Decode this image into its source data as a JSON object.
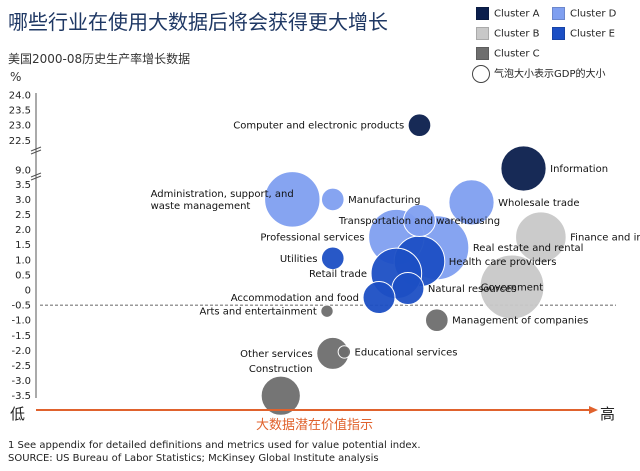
{
  "title": "哪些行业在使用大数据后将会获得更大增长",
  "subtitle": "美国2000-08历史生产率增长数据",
  "unit": "%",
  "legend": {
    "items": [
      {
        "label": "Cluster A",
        "color": "#0b1f4d"
      },
      {
        "label": "Cluster D",
        "color": "#7f9ff0"
      },
      {
        "label": "Cluster B",
        "color": "#c8c8c8"
      },
      {
        "label": "Cluster E",
        "color": "#1c4fc4"
      },
      {
        "label": "Cluster C",
        "color": "#6e6e6e"
      }
    ],
    "size_note": "气泡大小表示GDP的大小"
  },
  "x_axis": {
    "title": "大数据潜在价值指示",
    "low": "低",
    "high": "高"
  },
  "footnote": "1  See appendix for detailed definitions and metrics used for value potential index.",
  "source": "SOURCE:  US Bureau of Labor Statistics; McKinsey Global Institute analysis",
  "chart_data": {
    "type": "scatter",
    "title": "哪些行业在使用大数据后将会获得更大增长",
    "subtitle": "美国2000-08历史生产率增长数据",
    "ylabel": "%",
    "xlabel": "大数据潜在价值指示",
    "y_ticks_upper": [
      "24.0",
      "23.5",
      "23.0",
      "22.5"
    ],
    "y_ticks_middle": [
      "9.0",
      "3.5"
    ],
    "y_ticks_lower": [
      "3.0",
      "2.5",
      "2.0",
      "1.5",
      "1.0",
      "0.5",
      "0",
      "-0.5",
      "-1.0",
      "-1.5",
      "-2.0",
      "-2.5",
      "-3.0",
      "-3.5"
    ],
    "reference_line": -0.5,
    "points": [
      {
        "name": "Computer and electronic products",
        "x": 0.66,
        "y": 23.0,
        "cluster": "Cluster A",
        "size": 1,
        "label_side": "left"
      },
      {
        "name": "Information",
        "x": 0.84,
        "y": 9.6,
        "cluster": "Cluster A",
        "size": 4,
        "label_side": "right"
      },
      {
        "name": "Administration, support, and\nwaste management",
        "x": 0.44,
        "y": 3.0,
        "cluster": "Cluster D",
        "size": 6,
        "label_side": "left"
      },
      {
        "name": "Manufacturing",
        "x": 0.51,
        "y": 3.0,
        "cluster": "Cluster D",
        "size": 1,
        "label_side": "right"
      },
      {
        "name": "Wholesale trade",
        "x": 0.75,
        "y": 2.9,
        "cluster": "Cluster D",
        "size": 4,
        "label_side": "right"
      },
      {
        "name": "Transportation and warehousing",
        "x": 0.66,
        "y": 2.3,
        "cluster": "Cluster D",
        "size": 2,
        "label_side": "center"
      },
      {
        "name": "Finance and insurance",
        "x": 0.87,
        "y": 1.75,
        "cluster": "Cluster B",
        "size": 5,
        "label_side": "right"
      },
      {
        "name": "Professional services",
        "x": 0.62,
        "y": 1.75,
        "cluster": "Cluster D",
        "size": 6,
        "label_side": "left"
      },
      {
        "name": "Real estate and rental",
        "x": 0.69,
        "y": 1.4,
        "cluster": "Cluster D",
        "size": 8,
        "label_side": "right"
      },
      {
        "name": "Utilities",
        "x": 0.51,
        "y": 1.05,
        "cluster": "Cluster E",
        "size": 1,
        "label_side": "left"
      },
      {
        "name": "Health care providers",
        "x": 0.66,
        "y": 0.95,
        "cluster": "Cluster E",
        "size": 5,
        "label_side": "right"
      },
      {
        "name": "Retail trade",
        "x": 0.62,
        "y": 0.55,
        "cluster": "Cluster E",
        "size": 5,
        "label_side": "left"
      },
      {
        "name": "Government",
        "x": 0.82,
        "y": 0.1,
        "cluster": "Cluster B",
        "size": 8,
        "label_side": "center"
      },
      {
        "name": "Natural resources",
        "x": 0.64,
        "y": 0.05,
        "cluster": "Cluster E",
        "size": 2,
        "label_side": "right"
      },
      {
        "name": "Accommodation and food",
        "x": 0.59,
        "y": -0.25,
        "cluster": "Cluster E",
        "size": 2,
        "label_side": "left"
      },
      {
        "name": "Arts and entertainment",
        "x": 0.5,
        "y": -0.7,
        "cluster": "Cluster C",
        "size": 0.3,
        "label_side": "left"
      },
      {
        "name": "Management of companies",
        "x": 0.69,
        "y": -1.0,
        "cluster": "Cluster C",
        "size": 1,
        "label_side": "right"
      },
      {
        "name": "Educational services",
        "x": 0.53,
        "y": -2.05,
        "cluster": "Cluster C",
        "size": 0.3,
        "label_side": "right"
      },
      {
        "name": "Other services",
        "x": 0.51,
        "y": -2.1,
        "cluster": "Cluster C",
        "size": 2,
        "label_side": "left"
      },
      {
        "name": "Construction",
        "x": 0.42,
        "y": -3.5,
        "cluster": "Cluster C",
        "size": 3,
        "label_side": "above"
      }
    ]
  }
}
